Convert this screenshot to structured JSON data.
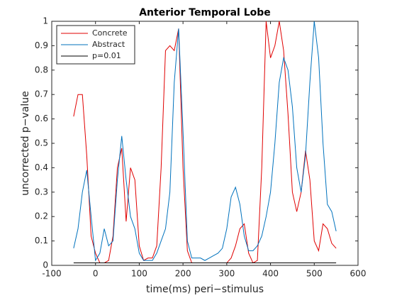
{
  "chart_data": {
    "type": "line",
    "title": "Anterior Temporal Lobe",
    "x_label": "time(ms) peri−stimulus",
    "y_label": "uncorrected p−value",
    "x": [
      -50,
      -40,
      -30,
      -20,
      -10,
      0,
      10,
      20,
      30,
      40,
      50,
      60,
      70,
      80,
      90,
      100,
      110,
      120,
      130,
      140,
      150,
      160,
      170,
      180,
      190,
      200,
      210,
      220,
      230,
      240,
      250,
      260,
      270,
      280,
      290,
      300,
      310,
      320,
      330,
      340,
      350,
      360,
      370,
      380,
      390,
      400,
      410,
      420,
      430,
      440,
      450,
      460,
      470,
      480,
      490,
      500,
      510,
      520,
      530,
      540,
      550
    ],
    "series": [
      {
        "name": "Concrete",
        "color": "#e00000",
        "values": [
          0.61,
          0.7,
          0.7,
          0.45,
          0.12,
          0.05,
          0.01,
          0.01,
          0.02,
          0.12,
          0.4,
          0.48,
          0.18,
          0.4,
          0.35,
          0.08,
          0.02,
          0.03,
          0.03,
          0.08,
          0.4,
          0.88,
          0.9,
          0.88,
          0.97,
          0.4,
          0.06,
          0.01,
          0.01,
          0.01,
          0.01,
          0.01,
          0.01,
          0.01,
          0.01,
          0.01,
          0.03,
          0.08,
          0.15,
          0.17,
          0.05,
          0.01,
          0.02,
          0.4,
          1.0,
          0.85,
          0.9,
          1.0,
          0.88,
          0.62,
          0.3,
          0.22,
          0.3,
          0.47,
          0.35,
          0.1,
          0.06,
          0.17,
          0.15,
          0.09,
          0.07
        ]
      },
      {
        "name": "Abstract",
        "color": "#0072bd",
        "values": [
          0.07,
          0.15,
          0.3,
          0.39,
          0.2,
          0.02,
          0.05,
          0.15,
          0.08,
          0.1,
          0.35,
          0.53,
          0.35,
          0.2,
          0.15,
          0.05,
          0.02,
          0.02,
          0.02,
          0.05,
          0.1,
          0.15,
          0.3,
          0.75,
          0.97,
          0.55,
          0.1,
          0.03,
          0.03,
          0.03,
          0.02,
          0.03,
          0.04,
          0.05,
          0.07,
          0.15,
          0.28,
          0.32,
          0.25,
          0.12,
          0.06,
          0.06,
          0.08,
          0.12,
          0.2,
          0.3,
          0.5,
          0.75,
          0.85,
          0.8,
          0.65,
          0.4,
          0.3,
          0.45,
          0.75,
          1.0,
          0.85,
          0.5,
          0.25,
          0.22,
          0.14
        ]
      },
      {
        "name": "p=0.01",
        "color": "#000000",
        "values": [
          0.01,
          0.01,
          0.01,
          0.01,
          0.01,
          0.01,
          0.01,
          0.01,
          0.01,
          0.01,
          0.01,
          0.01,
          0.01,
          0.01,
          0.01,
          0.01,
          0.01,
          0.01,
          0.01,
          0.01,
          0.01,
          0.01,
          0.01,
          0.01,
          0.01,
          0.01,
          0.01,
          0.01,
          0.01,
          0.01,
          0.01,
          0.01,
          0.01,
          0.01,
          0.01,
          0.01,
          0.01,
          0.01,
          0.01,
          0.01,
          0.01,
          0.01,
          0.01,
          0.01,
          0.01,
          0.01,
          0.01,
          0.01,
          0.01,
          0.01,
          0.01,
          0.01,
          0.01,
          0.01,
          0.01,
          0.01,
          0.01,
          0.01,
          0.01,
          0.01,
          0.01
        ]
      }
    ],
    "xlim": [
      -100,
      600
    ],
    "xticks": [
      -100,
      0,
      100,
      200,
      300,
      400,
      500,
      600
    ],
    "ylim": [
      0,
      1
    ],
    "yticks": [
      0,
      0.1,
      0.2,
      0.3,
      0.4,
      0.5,
      0.6,
      0.7,
      0.8,
      0.9,
      1
    ],
    "grid": false,
    "legend": "upper left"
  }
}
